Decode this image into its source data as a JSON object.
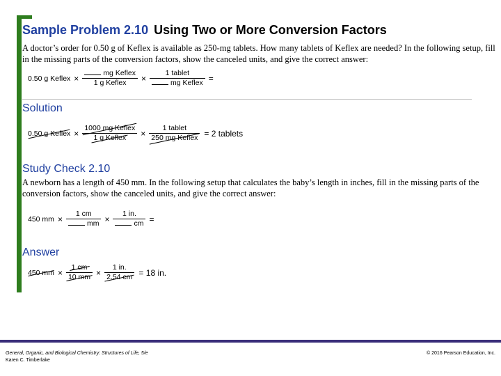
{
  "title": {
    "label": "Sample Problem 2.10",
    "subtitle": "Using Two or More Conversion Factors"
  },
  "problem": {
    "text": "A doctor’s order for 0.50 g of Keflex is available as 250-mg tablets. How many tablets of Keflex are needed? In the following setup, fill in the missing parts of the conversion factors, show the canceled units, and give the correct answer:",
    "eq": {
      "given": "0.50 g Keflex",
      "f1_num": "mg Keflex",
      "f1_den": "1 g Keflex",
      "f2_num": "1 tablet",
      "f2_den": "mg Keflex",
      "equals": "="
    }
  },
  "solution": {
    "heading": "Solution",
    "eq": {
      "given": "0.50 g Keflex",
      "f1_num": "1000 mg Keflex",
      "f1_den": "1 g Keflex",
      "f2_num": "1 tablet",
      "f2_den": "250 mg Keflex",
      "result": "= 2 tablets"
    }
  },
  "study_check": {
    "heading": "Study Check 2.10",
    "text": "A newborn has a length of 450 mm. In the following setup that calculates the baby’s length in inches, fill in the missing parts of the conversion factors, show the canceled units, and give the correct answer:",
    "eq": {
      "given": "450 mm",
      "f1_num": "1 cm",
      "f1_den": "mm",
      "f2_num": "1 in.",
      "f2_den": "cm",
      "equals": "="
    }
  },
  "answer": {
    "heading": "Answer",
    "eq": {
      "given": "450 mm",
      "f1_num": "1 cm",
      "f1_den": "10 mm",
      "f2_num": "1 in.",
      "f2_den": "2.54 cm",
      "result": "= 18 in."
    }
  },
  "footer": {
    "book_title": "General, Organic, and Biological Chemistry: Structures of Life, 5/e",
    "author": "Karen C. Timberlake",
    "copyright": "© 2016 Pearson Education, Inc."
  },
  "colors": {
    "heading": "#1f3fa0",
    "bracket": "#2e7d1e",
    "footer_bar": "#3a2e7a"
  }
}
